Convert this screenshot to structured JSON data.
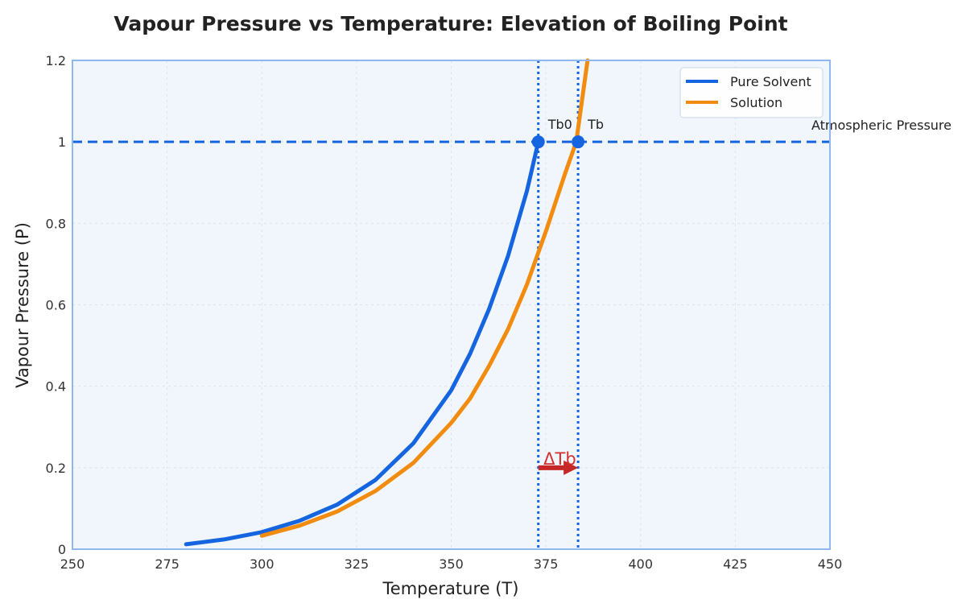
{
  "chart_data": {
    "type": "line",
    "title": "Vapour Pressure vs Temperature: Elevation of Boiling Point",
    "xlabel": "Temperature (T)",
    "ylabel": "Vapour Pressure (P)",
    "xlim": [
      250,
      450
    ],
    "ylim": [
      0,
      1.2
    ],
    "xticks": [
      250,
      275,
      300,
      325,
      350,
      375,
      400,
      425,
      450
    ],
    "xtick_labels": [
      "250",
      "275",
      "300",
      "325",
      "350",
      "375",
      "400",
      "425",
      "450"
    ],
    "yticks": [
      0,
      0.2,
      0.4,
      0.6,
      0.8,
      1.0,
      1.2
    ],
    "ytick_labels": [
      "0",
      "0.2",
      "0.4",
      "0.6",
      "0.8",
      "1",
      "1.2"
    ],
    "grid": true,
    "legend_position": "top-right",
    "series": [
      {
        "name": "Pure Solvent",
        "color": "#1565e0",
        "x": [
          280,
          290,
          300,
          310,
          320,
          330,
          340,
          350,
          355,
          360,
          365,
          370,
          373
        ],
        "y": [
          0.012,
          0.024,
          0.042,
          0.07,
          0.11,
          0.17,
          0.26,
          0.39,
          0.48,
          0.59,
          0.72,
          0.88,
          1.0
        ]
      },
      {
        "name": "Solution",
        "color": "#f28c0f",
        "x": [
          300,
          310,
          320,
          330,
          340,
          350,
          355,
          360,
          365,
          370,
          375,
          380,
          383,
          386
        ],
        "y": [
          0.033,
          0.058,
          0.093,
          0.143,
          0.212,
          0.31,
          0.37,
          0.45,
          0.54,
          0.65,
          0.78,
          0.92,
          1.0,
          1.2
        ]
      }
    ],
    "reference_lines": {
      "atmospheric": {
        "y": 1.0,
        "label": "Atmospheric Pressure",
        "color": "#1565e0"
      },
      "tb0_line": {
        "x": 373,
        "color": "#1565e0"
      },
      "tb_line": {
        "x": 383.5,
        "color": "#1565e0"
      }
    },
    "points": [
      {
        "label": "Tb0",
        "x": 373,
        "y": 1.0
      },
      {
        "label": "Tb",
        "x": 383.5,
        "y": 1.0
      }
    ],
    "delta_arrow": {
      "label": "ΔTb",
      "x_start": 373,
      "x_end": 383.5,
      "y": 0.2,
      "color": "#c62828"
    },
    "plot_background": "#f0f6fc",
    "frame_color": "#90b8f0"
  }
}
